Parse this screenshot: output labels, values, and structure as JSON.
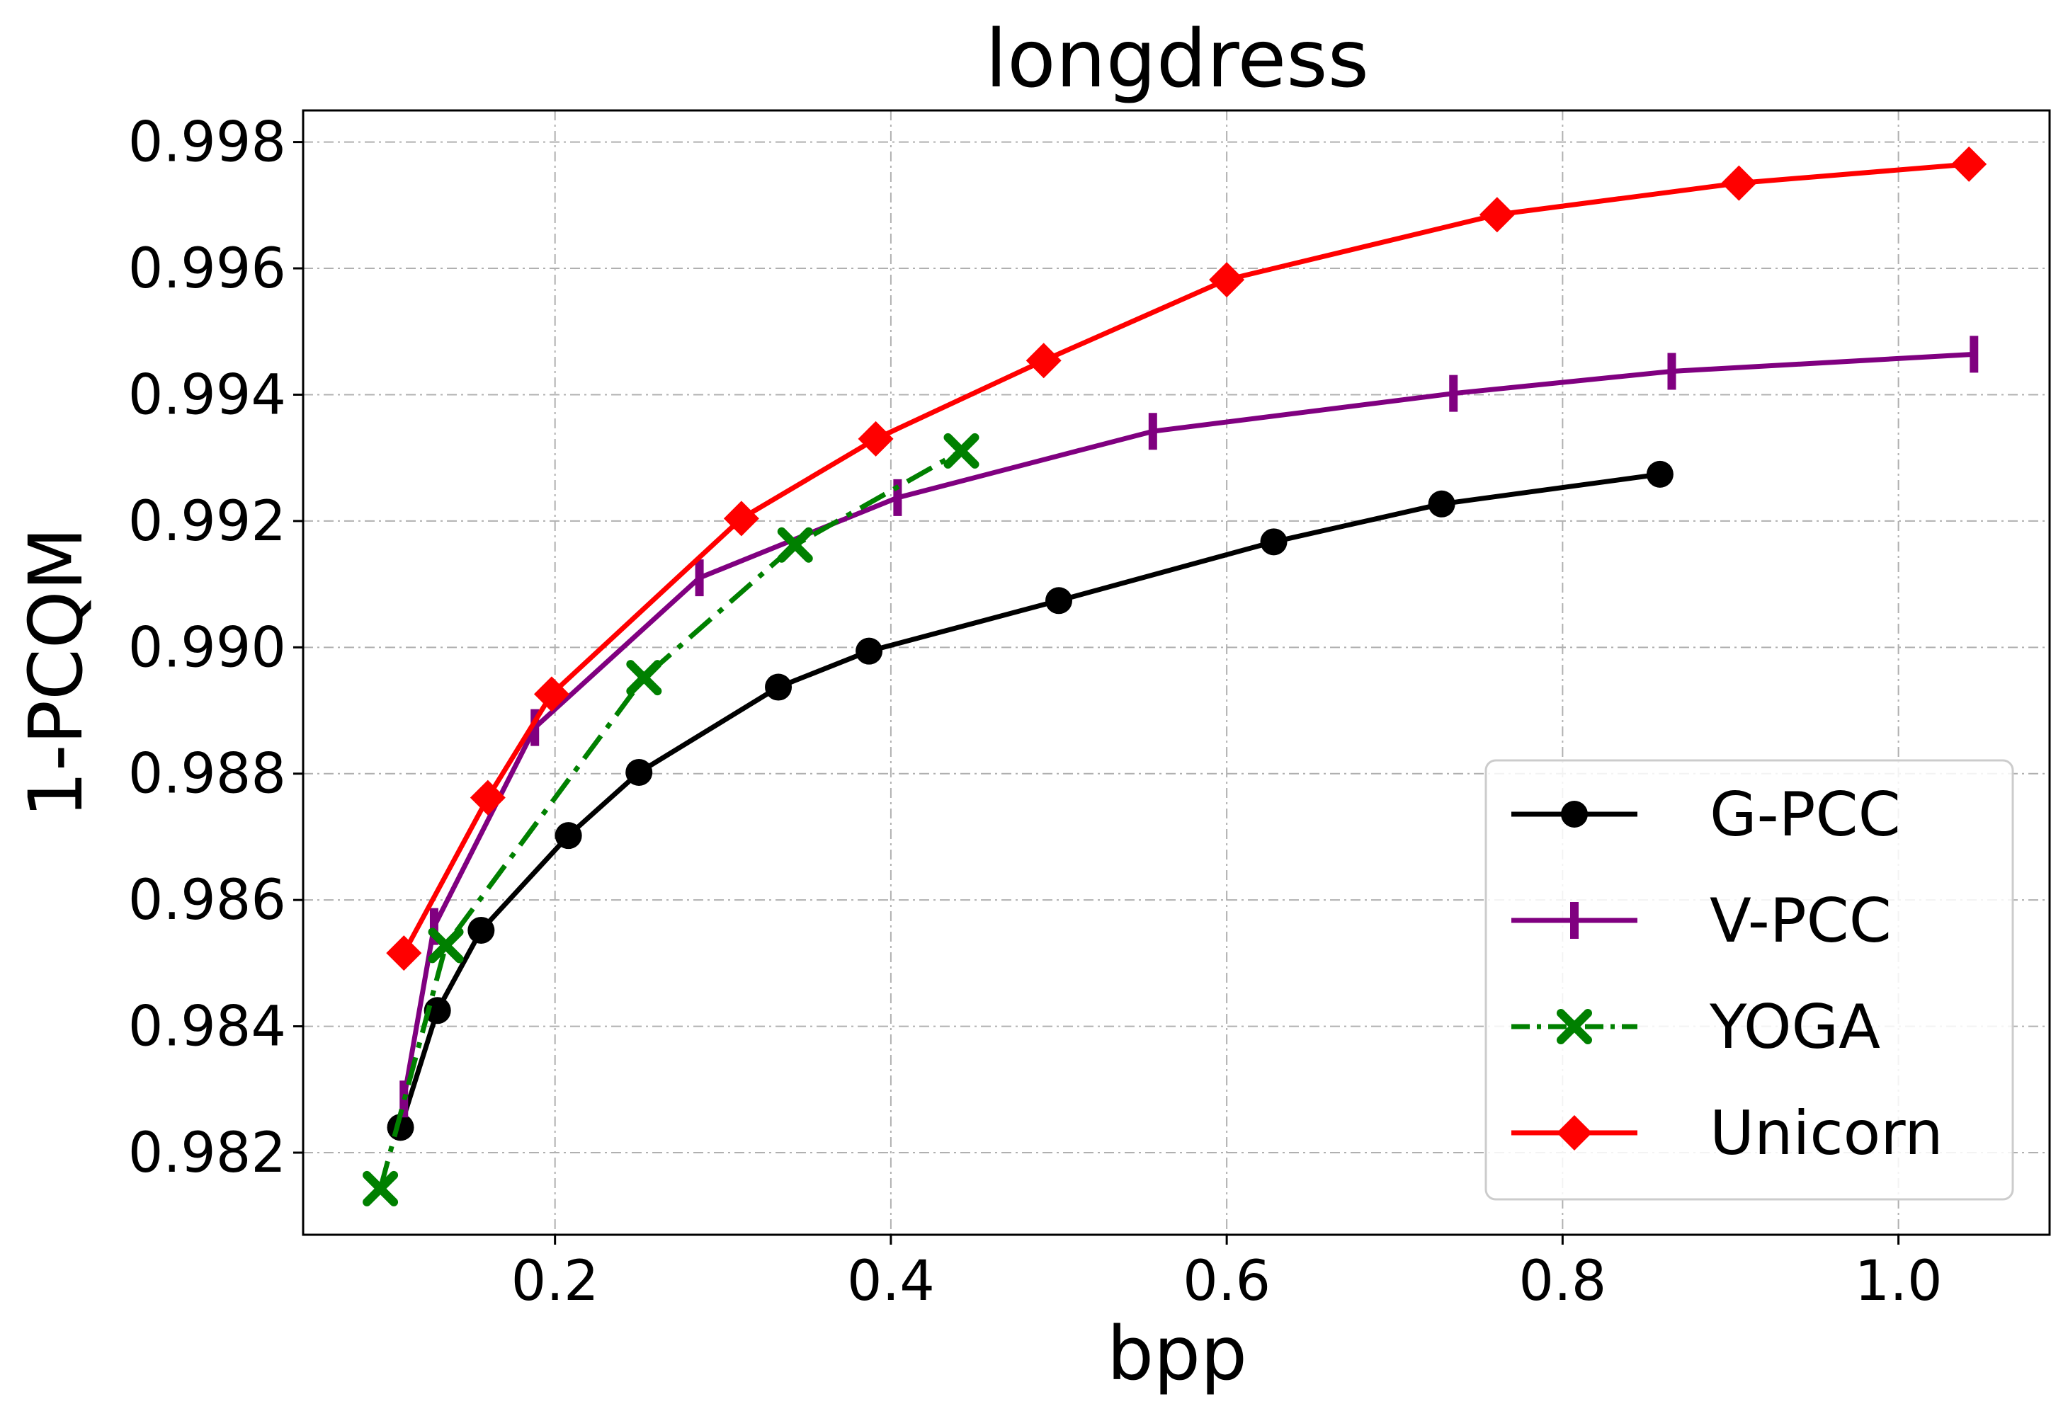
{
  "chart_data": {
    "type": "line",
    "title": "longdress",
    "xlabel": "bpp",
    "ylabel": "1-PCQM",
    "xlim": [
      0.05,
      1.09
    ],
    "ylim": [
      0.9807,
      0.9985
    ],
    "xticks": [
      0.2,
      0.4,
      0.6,
      0.8,
      1.0
    ],
    "xtick_labels": [
      "0.2",
      "0.4",
      "0.6",
      "0.8",
      "1.0"
    ],
    "yticks": [
      0.982,
      0.984,
      0.986,
      0.988,
      0.99,
      0.992,
      0.994,
      0.996,
      0.998
    ],
    "ytick_labels": [
      "0.982",
      "0.984",
      "0.986",
      "0.988",
      "0.990",
      "0.992",
      "0.994",
      "0.996",
      "0.998"
    ],
    "grid": true,
    "legend_position": "lower-right",
    "series": [
      {
        "name": "G-PCC",
        "color": "#000000",
        "marker": "circle",
        "line_style": "solid",
        "x": [
          0.108,
          0.13,
          0.156,
          0.208,
          0.25,
          0.333,
          0.387,
          0.5,
          0.628,
          0.728,
          0.858
        ],
        "y": [
          0.9824,
          0.98425,
          0.98552,
          0.98702,
          0.98802,
          0.98937,
          0.98994,
          0.99074,
          0.99167,
          0.99227,
          0.99274
        ]
      },
      {
        "name": "V-PCC",
        "color": "#800080",
        "marker": "vline",
        "line_style": "solid",
        "x": [
          0.11,
          0.128,
          0.188,
          0.286,
          0.404,
          0.556,
          0.735,
          0.865,
          1.045
        ],
        "y": [
          0.98285,
          0.98558,
          0.98873,
          0.9911,
          0.99237,
          0.99342,
          0.99402,
          0.99437,
          0.99464
        ]
      },
      {
        "name": "YOGA",
        "color": "#008000",
        "marker": "x",
        "line_style": "dashdot",
        "x": [
          0.096,
          0.135,
          0.253,
          0.343,
          0.442
        ],
        "y": [
          0.98143,
          0.98528,
          0.98952,
          0.99162,
          0.99311
        ]
      },
      {
        "name": "Unicorn",
        "color": "#ff0000",
        "marker": "diamond",
        "line_style": "solid",
        "x": [
          0.11,
          0.16,
          0.198,
          0.311,
          0.391,
          0.491,
          0.6,
          0.761,
          0.905,
          1.042
        ],
        "y": [
          0.98516,
          0.98762,
          0.98926,
          0.99204,
          0.9933,
          0.99454,
          0.99582,
          0.99685,
          0.99735,
          0.99765
        ]
      }
    ]
  }
}
